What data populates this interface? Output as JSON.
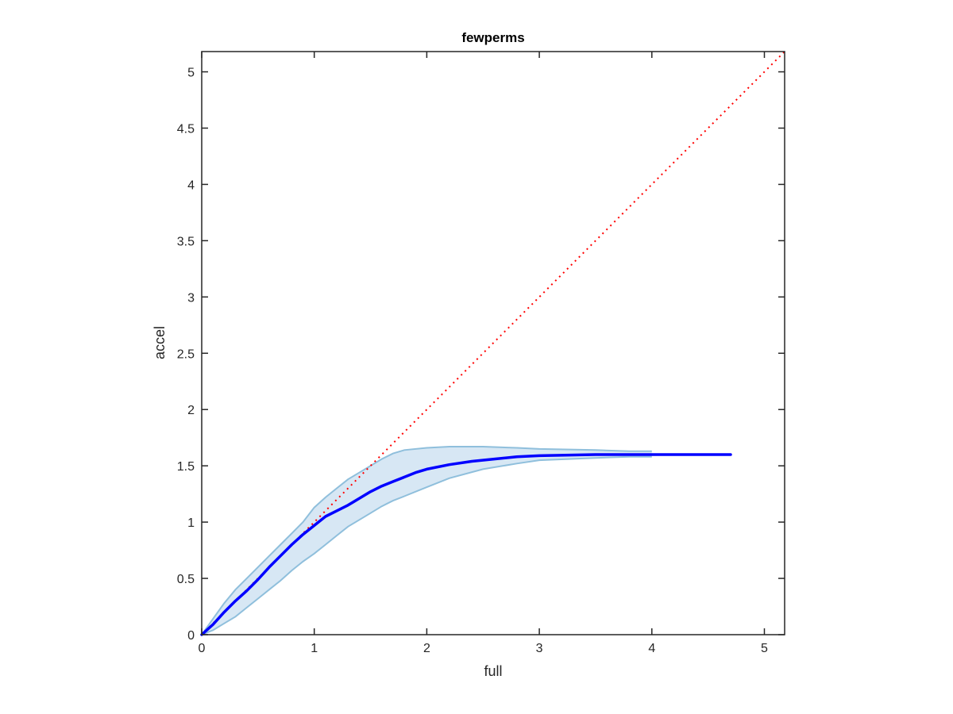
{
  "chart_data": {
    "type": "line",
    "title": "fewperms",
    "xlabel": "full",
    "ylabel": "accel",
    "xlim": [
      0,
      5.18
    ],
    "ylim": [
      0,
      5.18
    ],
    "grid": false,
    "box": true,
    "x_ticks": [
      0,
      1,
      2,
      3,
      4,
      5
    ],
    "x_tick_labels": [
      "0",
      "1",
      "2",
      "3",
      "4",
      "5"
    ],
    "y_ticks": [
      0,
      0.5,
      1,
      1.5,
      2,
      2.5,
      3,
      3.5,
      4,
      4.5,
      5
    ],
    "y_tick_labels": [
      "0",
      "0.5",
      "1",
      "1.5",
      "2",
      "2.5",
      "3",
      "3.5",
      "4",
      "4.5",
      "5"
    ],
    "colors": {
      "mean_line": "#0000ff",
      "band_fill": "#d7e7f4",
      "band_edge": "#8fbfdc",
      "identity_line": "#ff0000",
      "axis": "#262626"
    },
    "series": [
      {
        "kind": "band",
        "x": [
          0,
          0.1,
          0.2,
          0.3,
          0.4,
          0.5,
          0.6,
          0.7,
          0.8,
          0.9,
          1.0,
          1.1,
          1.2,
          1.3,
          1.4,
          1.5,
          1.6,
          1.7,
          1.8,
          2.0,
          2.2,
          2.5,
          2.8,
          3.0,
          3.5,
          3.8,
          4.0
        ],
        "upper": [
          0,
          0.14,
          0.28,
          0.4,
          0.5,
          0.6,
          0.7,
          0.8,
          0.9,
          1.0,
          1.13,
          1.22,
          1.3,
          1.38,
          1.44,
          1.5,
          1.56,
          1.61,
          1.64,
          1.66,
          1.67,
          1.67,
          1.66,
          1.65,
          1.64,
          1.63,
          1.63
        ],
        "lower": [
          0,
          0.04,
          0.1,
          0.16,
          0.24,
          0.32,
          0.4,
          0.48,
          0.57,
          0.65,
          0.72,
          0.8,
          0.88,
          0.96,
          1.02,
          1.08,
          1.14,
          1.19,
          1.23,
          1.31,
          1.39,
          1.47,
          1.52,
          1.55,
          1.57,
          1.58,
          1.58
        ]
      },
      {
        "kind": "mean",
        "x": [
          0,
          0.1,
          0.2,
          0.3,
          0.4,
          0.5,
          0.6,
          0.7,
          0.8,
          0.9,
          1.0,
          1.1,
          1.2,
          1.3,
          1.4,
          1.5,
          1.6,
          1.7,
          1.8,
          1.9,
          2.0,
          2.2,
          2.4,
          2.6,
          2.8,
          3.0,
          3.5,
          4.0,
          4.5,
          4.7
        ],
        "y": [
          0,
          0.09,
          0.2,
          0.3,
          0.39,
          0.49,
          0.6,
          0.7,
          0.8,
          0.89,
          0.97,
          1.05,
          1.1,
          1.15,
          1.21,
          1.27,
          1.32,
          1.36,
          1.4,
          1.44,
          1.47,
          1.51,
          1.54,
          1.56,
          1.58,
          1.59,
          1.6,
          1.6,
          1.6,
          1.6
        ]
      },
      {
        "kind": "identity",
        "x": [
          0,
          5.18
        ],
        "y": [
          0,
          5.18
        ]
      }
    ]
  }
}
